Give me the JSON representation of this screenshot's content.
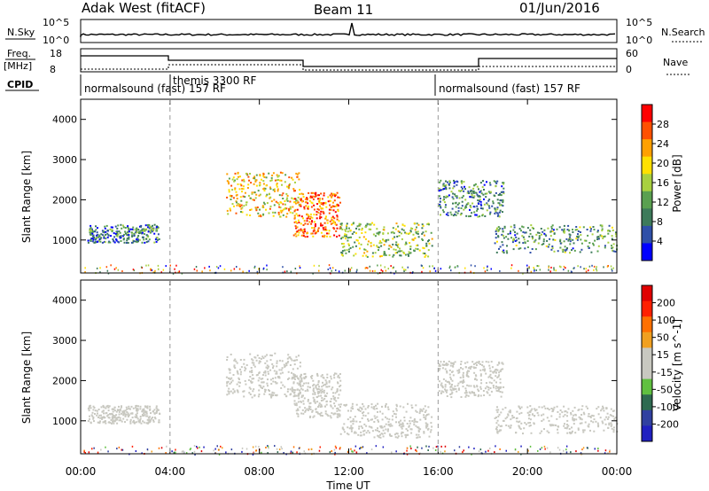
{
  "header": {
    "station": "Adak West (fitACF)",
    "beam": "Beam 11",
    "date": "01/Jun/2016"
  },
  "panels": {
    "nsky_label": "N.Sky",
    "nsearch_label": "N.Search",
    "freq_label": "Freq.",
    "freq_unit": "[MHz]",
    "nave_label": "Nave",
    "cpid_label": "CPID",
    "nsky_ticks": [
      "10^5",
      "10^0"
    ],
    "freq_ticks": [
      "18",
      "8"
    ],
    "nave_ticks": [
      "60",
      "0"
    ],
    "cpid_segments": [
      {
        "start_hour": 0,
        "label": "normalsound (fast) 157 RF"
      },
      {
        "start_hour": 4,
        "label": "themis 3300 RF"
      },
      {
        "start_hour": 16,
        "label": "normalsound (fast) 157 RF"
      }
    ]
  },
  "colors": {
    "power_scale": [
      "#0000ff",
      "#2f4fa8",
      "#3d7a5a",
      "#5aa050",
      "#a8d040",
      "#ffe000",
      "#ffa000",
      "#ff5000",
      "#ff0000"
    ],
    "velocity_scale": [
      "#2020c0",
      "#3040a0",
      "#2e6a50",
      "#60c040",
      "#c8c8c0",
      "#c8c8c0",
      "#f0a020",
      "#ff7000",
      "#ff2000",
      "#e00000"
    ]
  },
  "chart_data": [
    {
      "type": "heatmap",
      "title": "",
      "xlabel": "Time UT",
      "ylabel": "Slant Range [km]",
      "xlim": [
        0,
        24
      ],
      "ylim": [
        180,
        4500
      ],
      "x_ticks": [
        "00:00",
        "04:00",
        "08:00",
        "12:00",
        "16:00",
        "20:00",
        "00:00"
      ],
      "y_ticks": [
        "1000",
        "2000",
        "3000",
        "4000"
      ],
      "colorbar": {
        "label": "Power [dB]",
        "ticks": [
          "28",
          "24",
          "20",
          "16",
          "12",
          "8",
          "4"
        ],
        "range": [
          0,
          30
        ]
      },
      "regions": [
        {
          "t0": 0.3,
          "t1": 3.5,
          "r0": 950,
          "r1": 1400,
          "value": 8
        },
        {
          "t0": 6.5,
          "t1": 9.8,
          "r0": 1600,
          "r1": 2700,
          "value": 18
        },
        {
          "t0": 9.5,
          "t1": 11.6,
          "r0": 1100,
          "r1": 2200,
          "value": 24
        },
        {
          "t0": 11.6,
          "t1": 15.7,
          "r0": 600,
          "r1": 1450,
          "value": 14
        },
        {
          "t0": 16.0,
          "t1": 18.9,
          "r0": 1600,
          "r1": 2500,
          "value": 9
        },
        {
          "t0": 18.5,
          "t1": 24.0,
          "r0": 700,
          "r1": 1400,
          "value": 10
        }
      ]
    },
    {
      "type": "heatmap",
      "title": "",
      "xlabel": "Time UT",
      "ylabel": "Slant Range [km]",
      "xlim": [
        0,
        24
      ],
      "ylim": [
        180,
        4500
      ],
      "x_ticks": [
        "00:00",
        "04:00",
        "08:00",
        "12:00",
        "16:00",
        "20:00",
        "00:00"
      ],
      "y_ticks": [
        "1000",
        "2000",
        "3000",
        "4000"
      ],
      "colorbar": {
        "label": "Velocity [m s^-1]",
        "ticks": [
          "200",
          "100",
          "50",
          "15",
          "-15",
          "-50",
          "-100",
          "-200"
        ],
        "range": [
          -250,
          250
        ]
      },
      "regions": [
        {
          "t0": 0.3,
          "t1": 3.5,
          "r0": 950,
          "r1": 1400,
          "value": 0
        },
        {
          "t0": 6.5,
          "t1": 9.8,
          "r0": 1600,
          "r1": 2700,
          "value": 0
        },
        {
          "t0": 9.5,
          "t1": 11.6,
          "r0": 1100,
          "r1": 2200,
          "value": -10
        },
        {
          "t0": 11.6,
          "t1": 15.7,
          "r0": 600,
          "r1": 1450,
          "value": -40
        },
        {
          "t0": 16.0,
          "t1": 18.9,
          "r0": 1600,
          "r1": 2500,
          "value": 0
        },
        {
          "t0": 18.5,
          "t1": 24.0,
          "r0": 700,
          "r1": 1400,
          "value": 0
        }
      ]
    }
  ]
}
